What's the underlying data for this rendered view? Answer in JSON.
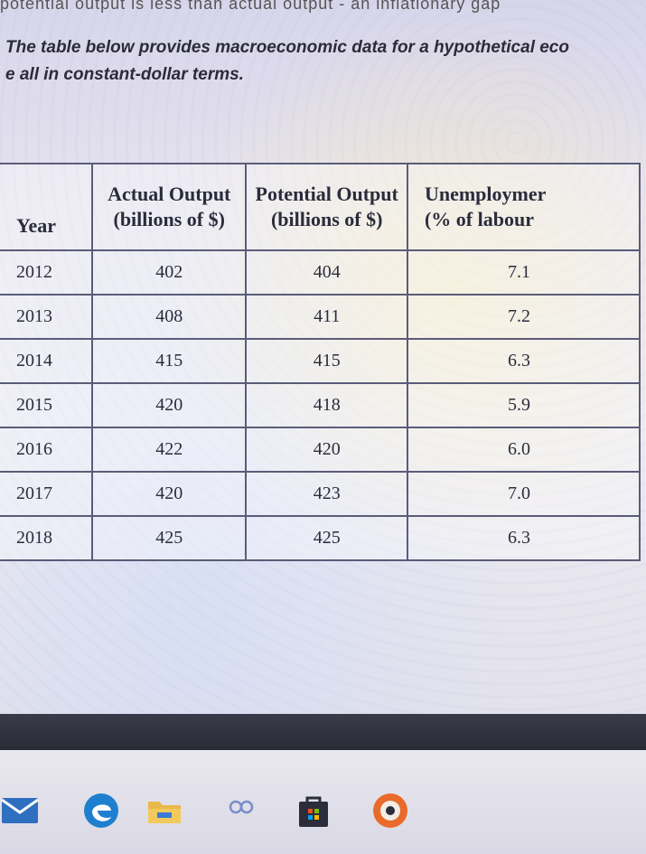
{
  "header": {
    "cutoff_line": "potential output is less than actual output - an inflationary gap",
    "intro_line1": "The table below provides macroeconomic data for a hypothetical eco",
    "intro_line2": "e all in constant-dollar terms."
  },
  "table": {
    "columns": [
      {
        "line1": "",
        "line2": "Year"
      },
      {
        "line1": "Actual Output",
        "line2": "(billions of $)"
      },
      {
        "line1": "Potential Output",
        "line2": "(billions of $)"
      },
      {
        "line1": "Unemploymer",
        "line2": "(% of labour"
      }
    ],
    "rows": [
      [
        "2012",
        "402",
        "404",
        "7.1"
      ],
      [
        "2013",
        "408",
        "411",
        "7.2"
      ],
      [
        "2014",
        "415",
        "415",
        "6.3"
      ],
      [
        "2015",
        "420",
        "418",
        "5.9"
      ],
      [
        "2016",
        "422",
        "420",
        "6.0"
      ],
      [
        "2017",
        "420",
        "423",
        "7.0"
      ],
      [
        "2018",
        "425",
        "425",
        "6.3"
      ]
    ]
  },
  "taskbar": {
    "icons": [
      "mail-icon",
      "edge-browser-icon",
      "file-explorer-icon",
      "people-icon",
      "store-icon",
      "office-icon"
    ]
  },
  "colors": {
    "text": "#2a2c3c",
    "grid": "#5a5c78",
    "bezel": "#2a2b36"
  }
}
